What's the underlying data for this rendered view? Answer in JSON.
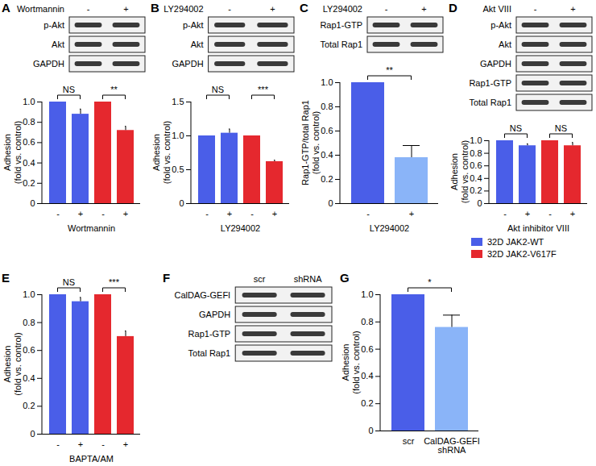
{
  "chart_data": [
    {
      "panel": "A",
      "type": "bar",
      "categories": [
        "-",
        "+"
      ],
      "x_label": "Wortmannin",
      "y_label": "Adhesion (fold vs. control)",
      "ylim": [
        0,
        1
      ],
      "yticks": [
        0,
        0.2,
        0.4,
        0.6,
        0.8,
        {
          "value": 1,
          "label": "1.0"
        }
      ],
      "series": [
        {
          "name": "32D JAK2-WT",
          "color": "#4a5ee8",
          "values": [
            1,
            0.88
          ],
          "errors": [
            0,
            0.05
          ],
          "annotation": "NS"
        },
        {
          "name": "32D JAK2-V617F",
          "color": "#e5282e",
          "values": [
            1,
            0.72
          ],
          "errors": [
            0,
            0.04
          ],
          "annotation": "**"
        }
      ]
    },
    {
      "panel": "B",
      "type": "bar",
      "categories": [
        "-",
        "+"
      ],
      "x_label": "LY294002",
      "y_label": "Adhesion (fold vs. control)",
      "ylim": [
        0,
        1.5
      ],
      "yticks": [
        0,
        0.5,
        {
          "value": 1,
          "label": "1.0"
        },
        1.5
      ],
      "series": [
        {
          "name": "32D JAK2-WT",
          "color": "#4a5ee8",
          "values": [
            1,
            1.04
          ],
          "errors": [
            0,
            0.06
          ],
          "annotation": "NS"
        },
        {
          "name": "32D JAK2-V617F",
          "color": "#e5282e",
          "values": [
            1,
            0.62
          ],
          "errors": [
            0,
            0.02
          ],
          "annotation": "***"
        }
      ]
    },
    {
      "panel": "C",
      "type": "bar",
      "categories": [
        "-",
        "+"
      ],
      "x_label": "LY294002",
      "y_label": "Rap1-GTP/total Rap1 (fold vs. control)",
      "ylim": [
        0,
        1
      ],
      "yticks": [
        0,
        0.2,
        0.4,
        0.6,
        0.8,
        {
          "value": 1,
          "label": "1.0"
        }
      ],
      "values": [
        1,
        0.38
      ],
      "errors": [
        0,
        0.1
      ],
      "colors": [
        "#4a5ee8",
        "#8ab4f8"
      ],
      "annotation": "**"
    },
    {
      "panel": "D",
      "type": "bar",
      "categories": [
        "-",
        "+"
      ],
      "x_label": "Akt inhibitor VIII",
      "y_label": "Adhesion (fold vs. control)",
      "ylim": [
        0,
        1
      ],
      "yticks": [
        0,
        0.2,
        0.4,
        0.6,
        0.8,
        {
          "value": 1,
          "label": "1.0"
        }
      ],
      "legend": "bottom",
      "series": [
        {
          "name": "32D JAK2-WT",
          "color": "#4a5ee8",
          "values": [
            1,
            0.92
          ],
          "errors": [
            0,
            0.03
          ],
          "annotation": "NS"
        },
        {
          "name": "32D JAK2-V617F",
          "color": "#e5282e",
          "values": [
            1,
            0.92
          ],
          "errors": [
            0,
            0.05
          ],
          "annotation": "NS"
        }
      ]
    },
    {
      "panel": "E",
      "type": "bar",
      "categories": [
        "-",
        "+"
      ],
      "x_label": "BAPTA/AM",
      "y_label": "Adhesion (fold vs. control)",
      "ylim": [
        0,
        1
      ],
      "yticks": [
        0,
        0.2,
        0.4,
        0.6,
        0.8,
        {
          "value": 1,
          "label": "1.0"
        }
      ],
      "series": [
        {
          "name": "32D JAK2-WT",
          "color": "#4a5ee8",
          "values": [
            1,
            0.95
          ],
          "errors": [
            0,
            0.03
          ],
          "annotation": "NS"
        },
        {
          "name": "32D JAK2-V617F",
          "color": "#e5282e",
          "values": [
            1,
            0.7
          ],
          "errors": [
            0,
            0.04
          ],
          "annotation": "***"
        }
      ]
    },
    {
      "panel": "G",
      "type": "bar",
      "categories": [
        "scr",
        "CalDAG-GEFI shRNA"
      ],
      "y_label": "Adhesion (fold vs. control)",
      "ylim": [
        0,
        1
      ],
      "yticks": [
        0,
        0.2,
        0.4,
        0.6,
        0.8,
        {
          "value": 1,
          "label": "1.0"
        }
      ],
      "values": [
        1,
        0.76
      ],
      "errors": [
        0,
        0.09
      ],
      "colors": [
        "#4a5ee8",
        "#8ab4f8"
      ],
      "annotation": "*"
    }
  ],
  "blots": [
    {
      "panel": "A",
      "treatment": "Wortmannin",
      "lanes": [
        "-",
        "+"
      ],
      "rows": [
        "p-Akt",
        "Akt",
        "GAPDH"
      ]
    },
    {
      "panel": "B",
      "treatment": "LY294002",
      "lanes": [
        "-",
        "+"
      ],
      "rows": [
        "p-Akt",
        "Akt",
        "GAPDH"
      ]
    },
    {
      "panel": "C",
      "treatment": "LY294002",
      "lanes": [
        "-",
        "+"
      ],
      "rows": [
        "Rap1-GTP",
        "Total Rap1"
      ]
    },
    {
      "panel": "D",
      "treatment": "Akt VIII",
      "lanes": [
        "-",
        "+"
      ],
      "rows": [
        "p-Akt",
        "Akt",
        "GAPDH",
        "Rap1-GTP",
        "Total Rap1"
      ]
    },
    {
      "panel": "F",
      "lanes": [
        "scr",
        "shRNA"
      ],
      "rows": [
        "CalDAG-GEFI",
        "GAPDH",
        "Rap1-GTP",
        "Total Rap1"
      ]
    }
  ]
}
